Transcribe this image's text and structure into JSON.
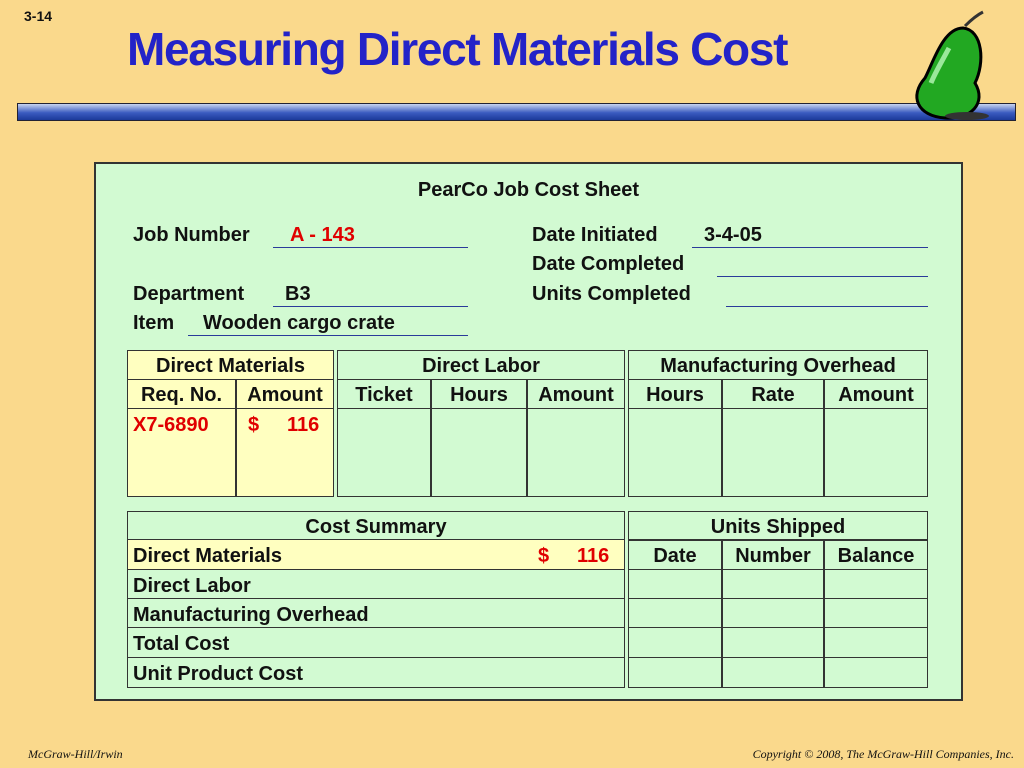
{
  "slide_number": "3-14",
  "title": "Measuring Direct Materials Cost",
  "sheet": {
    "title": "PearCo Job Cost Sheet",
    "fields": [
      {
        "label": "Job Number",
        "value": "A - 143"
      },
      {
        "label": "Department",
        "value": "B3"
      },
      {
        "label": "Item",
        "value": "Wooden cargo crate"
      },
      {
        "label": "Date Initiated",
        "value": "3-4-05"
      },
      {
        "label": "Date Completed"
      },
      {
        "label": "Units Completed"
      }
    ],
    "cost_table": {
      "groups": [
        "Direct Materials",
        "Direct Labor",
        "Manufacturing Overhead"
      ],
      "columns": [
        "Req. No.",
        "Amount",
        "Ticket",
        "Hours",
        "Amount",
        "Hours",
        "Rate",
        "Amount"
      ],
      "row": {
        "req_no": "X7-6890",
        "currency": "$",
        "amount": 116
      }
    },
    "cost_summary": {
      "title": "Cost Summary",
      "rows": [
        {
          "label": "Direct Materials",
          "currency": "$",
          "amount": 116
        },
        {
          "label": "Direct Labor"
        },
        {
          "label": "Manufacturing Overhead"
        },
        {
          "label": "Total Cost"
        },
        {
          "label": "Unit Product Cost"
        }
      ]
    },
    "units_shipped": {
      "title": "Units Shipped",
      "columns": [
        "Date",
        "Number",
        "Balance"
      ]
    }
  },
  "footer": {
    "left": "McGraw-Hill/Irwin",
    "right": "Copyright © 2008, The McGraw-Hill Companies, Inc."
  }
}
